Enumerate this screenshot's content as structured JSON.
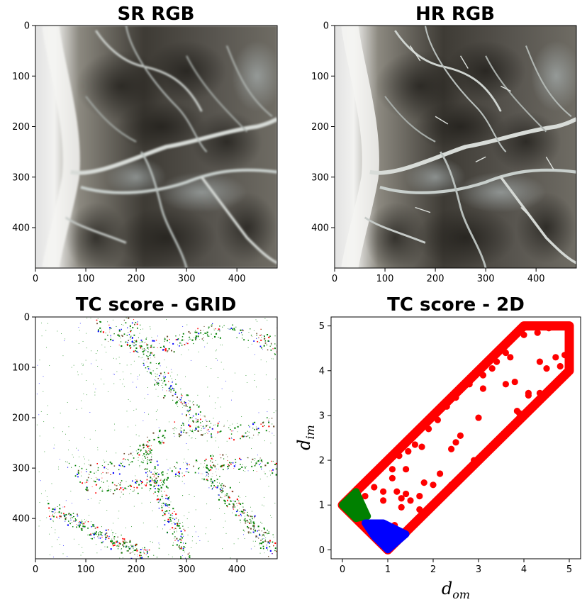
{
  "chart_data": [
    {
      "type": "image",
      "title": "SR RGB",
      "xticks": [
        0,
        100,
        200,
        300,
        400
      ],
      "yticks": [
        0,
        100,
        200,
        300,
        400
      ],
      "xlim": [
        0,
        480
      ],
      "ylim": [
        480,
        0
      ],
      "content": "satellite RGB image"
    },
    {
      "type": "image",
      "title": "HR RGB",
      "xticks": [
        0,
        100,
        200,
        300,
        400
      ],
      "yticks": [
        0,
        100,
        200,
        300,
        400
      ],
      "xlim": [
        0,
        480
      ],
      "ylim": [
        480,
        0
      ],
      "content": "satellite RGB image"
    },
    {
      "type": "heatmap",
      "title": "TC score - GRID",
      "xticks": [
        0,
        100,
        200,
        300,
        400
      ],
      "yticks": [
        0,
        100,
        200,
        300,
        400
      ],
      "xlim": [
        0,
        480
      ],
      "ylim": [
        480,
        0
      ],
      "colors": {
        "background": "#ffffff",
        "green": "#008000",
        "blue": "#0000ff",
        "red": "#ff0000"
      }
    },
    {
      "type": "scatter",
      "title": "TC score - 2D",
      "xlabel": "d",
      "xlabel_sub": "om",
      "ylabel": "d",
      "ylabel_sub": "im",
      "xticks": [
        0,
        1,
        2,
        3,
        4,
        5
      ],
      "yticks": [
        0,
        1,
        2,
        3,
        4,
        5
      ],
      "xlim": [
        -0.25,
        5.25
      ],
      "ylim": [
        -0.2,
        5.2
      ],
      "colors": {
        "red": "#ff0000",
        "green": "#008000",
        "blue": "#0000ff"
      },
      "band_outline": [
        [
          1,
          0
        ],
        [
          5,
          4
        ],
        [
          5,
          5
        ],
        [
          4,
          5
        ],
        [
          0,
          1
        ]
      ],
      "green_region": [
        [
          0,
          1
        ],
        [
          0.3,
          1.3
        ],
        [
          0.55,
          0.75
        ],
        [
          0.3,
          0.7
        ]
      ],
      "blue_region": [
        [
          1,
          0
        ],
        [
          1.4,
          0.35
        ],
        [
          0.9,
          0.6
        ],
        [
          0.5,
          0.6
        ],
        [
          0.7,
          0.3
        ]
      ],
      "red_points": [
        [
          0.35,
          1.3
        ],
        [
          0.5,
          1.2
        ],
        [
          0.7,
          1.4
        ],
        [
          0.9,
          1.3
        ],
        [
          1.1,
          1.6
        ],
        [
          1.2,
          1.3
        ],
        [
          1.4,
          1.8
        ],
        [
          0.9,
          1.1
        ],
        [
          1.3,
          1.15
        ],
        [
          1.5,
          1.1
        ],
        [
          1.3,
          0.95
        ],
        [
          1.7,
          1.2
        ],
        [
          1.8,
          1.5
        ],
        [
          2.0,
          1.45
        ],
        [
          1.1,
          1.8
        ],
        [
          1.25,
          2.1
        ],
        [
          1.45,
          2.2
        ],
        [
          1.6,
          2.35
        ],
        [
          1.75,
          2.3
        ],
        [
          1.9,
          2.7
        ],
        [
          2.1,
          2.9
        ],
        [
          2.3,
          3.2
        ],
        [
          2.5,
          3.4
        ],
        [
          2.8,
          3.7
        ],
        [
          3.1,
          3.9
        ],
        [
          3.4,
          4.2
        ],
        [
          3.6,
          4.4
        ],
        [
          3.7,
          4.3
        ],
        [
          2.15,
          1.7
        ],
        [
          2.4,
          1.45
        ],
        [
          2.4,
          2.25
        ],
        [
          2.5,
          2.4
        ],
        [
          2.9,
          2.0
        ],
        [
          3.1,
          3.6
        ],
        [
          3.6,
          3.7
        ],
        [
          3.85,
          3.1
        ],
        [
          3.9,
          3.05
        ],
        [
          4.1,
          3.45
        ],
        [
          4.35,
          3.5
        ],
        [
          4.5,
          4.05
        ],
        [
          4.7,
          4.3
        ],
        [
          4.9,
          4.35
        ],
        [
          4.8,
          4.1
        ],
        [
          4.0,
          4.8
        ],
        [
          4.3,
          4.85
        ],
        [
          4.55,
          4.95
        ],
        [
          3.3,
          4.05
        ],
        [
          3.0,
          2.95
        ],
        [
          2.6,
          2.55
        ],
        [
          1.15,
          0.55
        ],
        [
          1.7,
          0.9
        ],
        [
          2.1,
          1.1
        ],
        [
          1.4,
          1.25
        ],
        [
          4.35,
          4.2
        ],
        [
          4.1,
          3.5
        ],
        [
          3.8,
          3.75
        ]
      ]
    }
  ]
}
